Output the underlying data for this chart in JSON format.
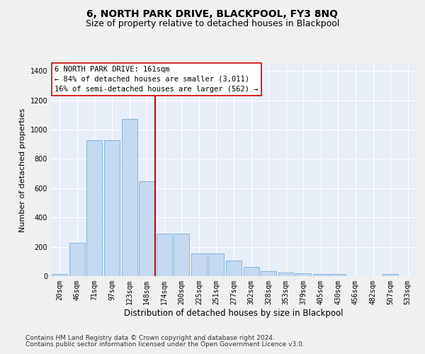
{
  "title": "6, NORTH PARK DRIVE, BLACKPOOL, FY3 8NQ",
  "subtitle": "Size of property relative to detached houses in Blackpool",
  "xlabel": "Distribution of detached houses by size in Blackpool",
  "ylabel": "Number of detached properties",
  "categories": [
    "20sqm",
    "46sqm",
    "71sqm",
    "97sqm",
    "123sqm",
    "148sqm",
    "174sqm",
    "200sqm",
    "225sqm",
    "251sqm",
    "277sqm",
    "302sqm",
    "328sqm",
    "353sqm",
    "379sqm",
    "405sqm",
    "430sqm",
    "456sqm",
    "482sqm",
    "507sqm",
    "533sqm"
  ],
  "values": [
    15,
    225,
    930,
    930,
    1075,
    650,
    290,
    290,
    155,
    155,
    105,
    65,
    35,
    25,
    20,
    15,
    15,
    0,
    0,
    15,
    0
  ],
  "bar_color": "#c5d9f0",
  "bar_edge_color": "#7bafd4",
  "vline_color": "#cc0000",
  "annotation_text": "6 NORTH PARK DRIVE: 161sqm\n← 84% of detached houses are smaller (3,011)\n16% of semi-detached houses are larger (562) →",
  "ylim": [
    0,
    1450
  ],
  "yticks": [
    0,
    200,
    400,
    600,
    800,
    1000,
    1200,
    1400
  ],
  "footer_line1": "Contains HM Land Registry data © Crown copyright and database right 2024.",
  "footer_line2": "Contains public sector information licensed under the Open Government Licence v3.0.",
  "plot_bg_color": "#e8eef8",
  "fig_bg_color": "#f0f0f0",
  "grid_color": "#ffffff",
  "title_fontsize": 10,
  "subtitle_fontsize": 9,
  "ylabel_fontsize": 8,
  "xlabel_fontsize": 8.5,
  "tick_fontsize": 7,
  "annot_fontsize": 7.5,
  "footer_fontsize": 6.5
}
